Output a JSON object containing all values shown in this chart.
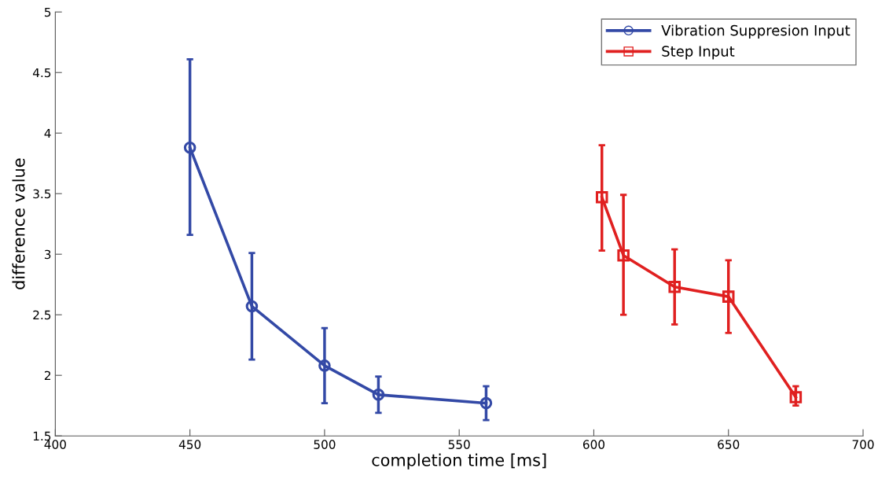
{
  "chart_data": {
    "type": "line",
    "xlabel": "completion time [ms]",
    "ylabel": "difference value",
    "xlim": [
      400,
      700
    ],
    "xticks": [
      400,
      450,
      500,
      550,
      600,
      650,
      700
    ],
    "ylim": [
      1.5,
      5
    ],
    "yticks": [
      1.5,
      2,
      2.5,
      3,
      3.5,
      4,
      4.5,
      5
    ],
    "grid": false,
    "legend": "top right",
    "series": [
      {
        "name": "Vibration Suppresion Input",
        "color": "#3349a6",
        "marker": "circle",
        "x": [
          450,
          473,
          500,
          520,
          560
        ],
        "values": [
          3.88,
          2.57,
          2.08,
          1.84,
          1.77
        ],
        "errors": [
          [
            3.16,
            4.61
          ],
          [
            2.13,
            3.01
          ],
          [
            1.77,
            2.39
          ],
          [
            1.69,
            1.99
          ],
          [
            1.63,
            1.91
          ]
        ]
      },
      {
        "name": "Step Input",
        "color": "#e02020",
        "marker": "square",
        "x": [
          603,
          611,
          630,
          650,
          675
        ],
        "values": [
          3.47,
          2.99,
          2.73,
          2.65,
          1.82
        ],
        "errors": [
          [
            3.03,
            3.9
          ],
          [
            2.5,
            3.49
          ],
          [
            2.42,
            3.04
          ],
          [
            2.35,
            2.95
          ],
          [
            1.75,
            1.91
          ]
        ]
      }
    ]
  }
}
